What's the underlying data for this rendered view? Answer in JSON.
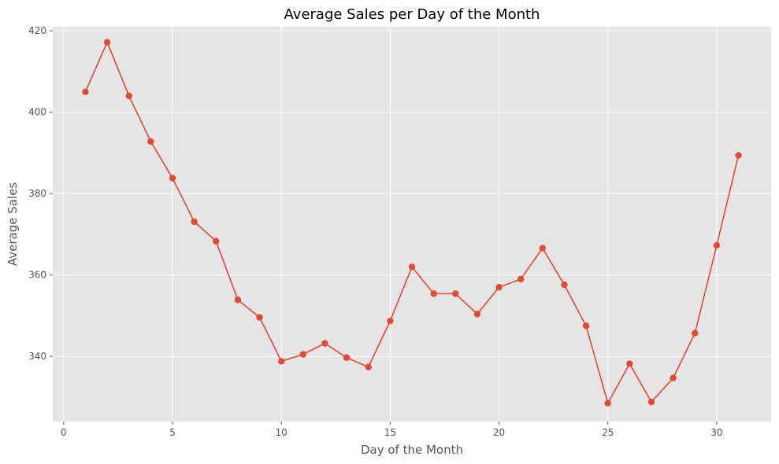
{
  "chart_data": {
    "type": "line",
    "title": "Average Sales per Day of the Month",
    "xlabel": "Day of the Month",
    "ylabel": "Average Sales",
    "xlim": [
      -0.5,
      32.5
    ],
    "ylim": [
      324,
      421
    ],
    "xticks": [
      0,
      5,
      10,
      15,
      20,
      25,
      30
    ],
    "yticks": [
      340,
      360,
      380,
      400,
      420
    ],
    "grid": true,
    "legend": "none",
    "style": {
      "background": "#e5e5e5",
      "grid_color": "#ffffff",
      "line_color": "#e24a33"
    },
    "x": [
      1,
      2,
      3,
      4,
      5,
      6,
      7,
      8,
      9,
      10,
      11,
      12,
      13,
      14,
      15,
      16,
      17,
      18,
      19,
      20,
      21,
      22,
      23,
      24,
      25,
      26,
      27,
      28,
      29,
      30,
      31
    ],
    "series": [
      {
        "values": [
          405,
          417.2,
          404,
          392.8,
          383.8,
          373.1,
          368.3,
          353.9,
          349.6,
          338.8,
          340.5,
          343.2,
          339.7,
          337.4,
          348.7,
          362,
          355.4,
          355.4,
          350.4,
          357,
          359,
          366.6,
          357.6,
          347.5,
          328.5,
          338.2,
          328.8,
          334.7,
          345.7,
          367.3,
          389.4
        ]
      }
    ]
  }
}
